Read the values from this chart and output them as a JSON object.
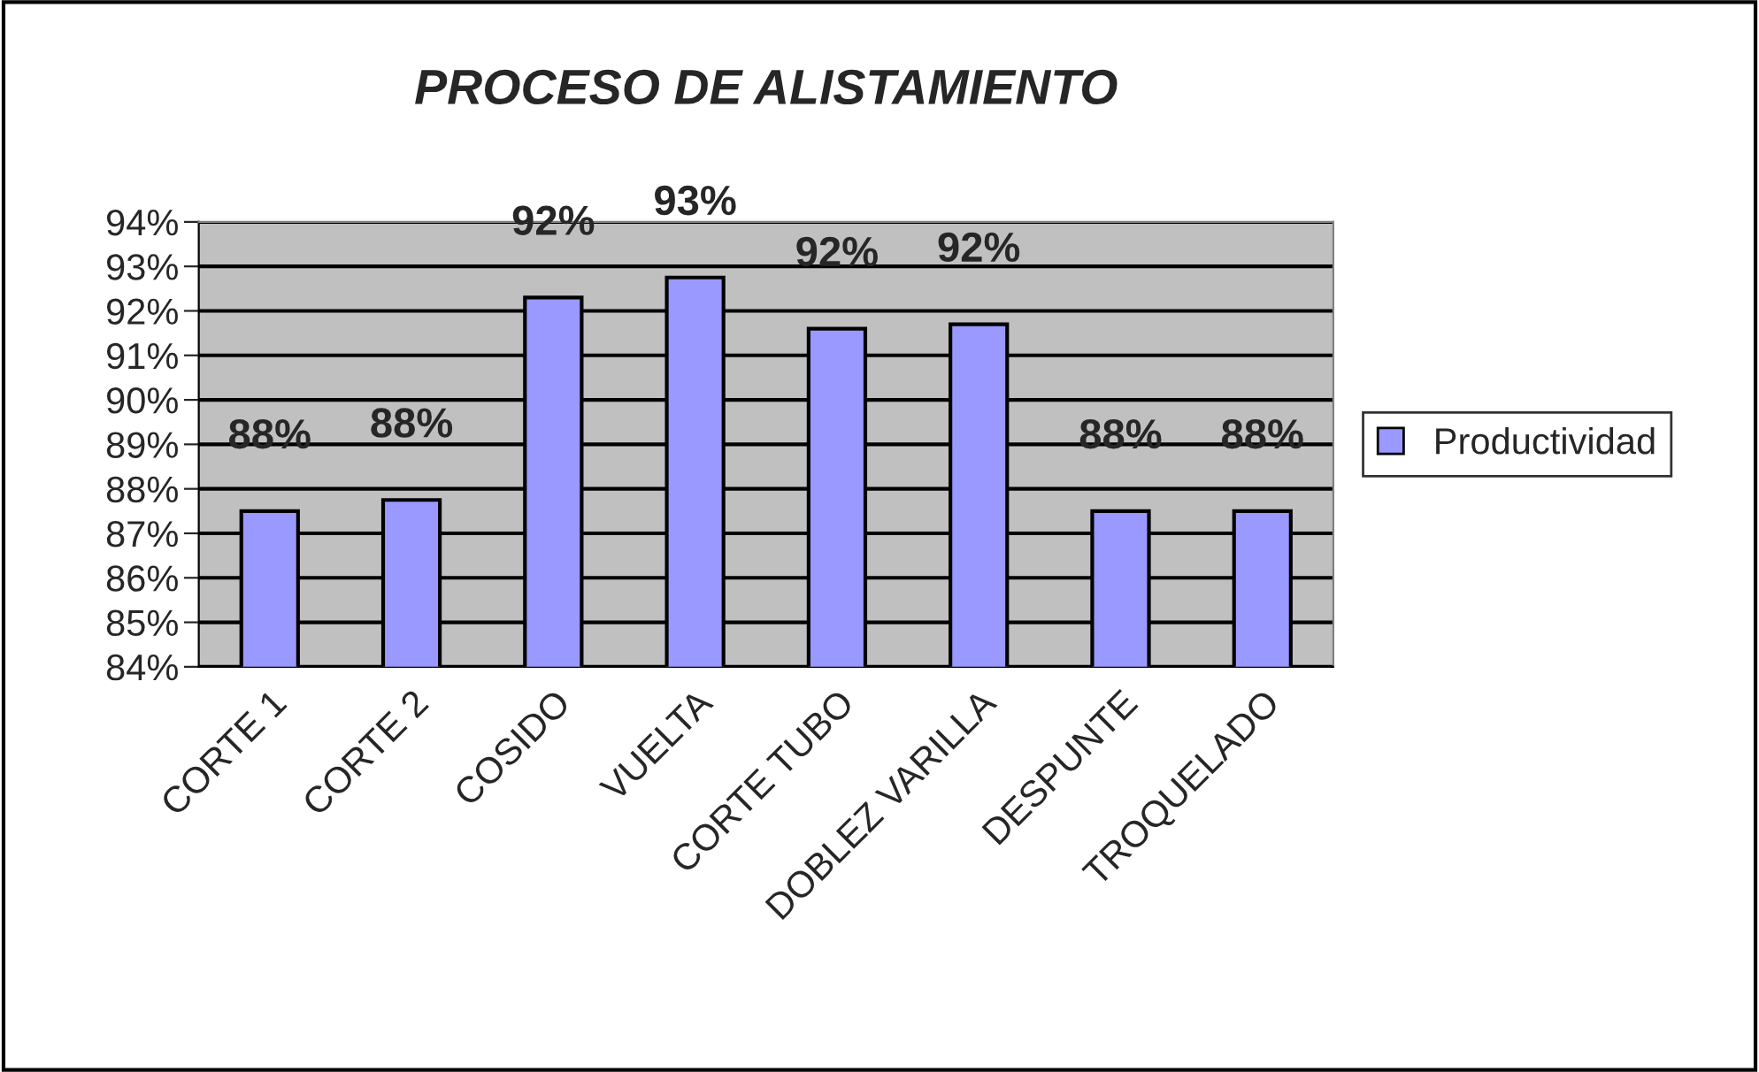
{
  "chart_data": {
    "type": "bar",
    "title": "PROCESO DE ALISTAMIENTO",
    "categories": [
      "CORTE 1",
      "CORTE 2",
      "COSIDO",
      "VUELTA",
      "CORTE TUBO",
      "DOBLEZ VARILLA",
      "DESPUNTE",
      "TROQUELADO"
    ],
    "series": [
      {
        "name": "Productividad",
        "color": "#9999ff",
        "values": [
          87.5,
          87.75,
          92.3,
          92.75,
          91.6,
          91.7,
          87.5,
          87.5
        ],
        "value_labels": [
          "88%",
          "88%",
          "92%",
          "93%",
          "92%",
          "92%",
          "88%",
          "88%"
        ]
      }
    ],
    "ylim": [
      84,
      94
    ],
    "yticks": [
      {
        "value": 84,
        "label": "84%"
      },
      {
        "value": 85,
        "label": "85%"
      },
      {
        "value": 86,
        "label": "86%"
      },
      {
        "value": 87,
        "label": "87%"
      },
      {
        "value": 88,
        "label": "88%"
      },
      {
        "value": 89,
        "label": "89%"
      },
      {
        "value": 90,
        "label": "90%"
      },
      {
        "value": 91,
        "label": "91%"
      },
      {
        "value": 92,
        "label": "92%"
      },
      {
        "value": 93,
        "label": "93%"
      },
      {
        "value": 94,
        "label": "94%"
      }
    ],
    "grid": "y",
    "legend": "right"
  }
}
